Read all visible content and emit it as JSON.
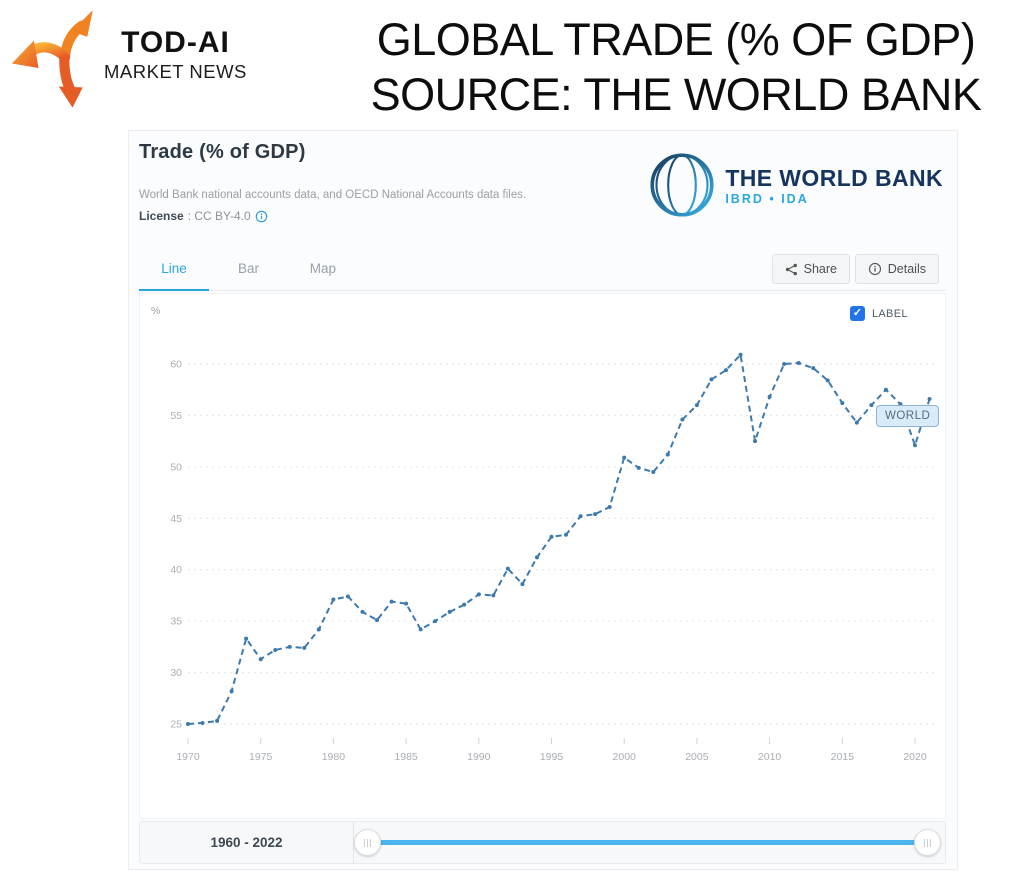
{
  "header": {
    "brand_title": "TOD-AI",
    "brand_subtitle": "MARKET NEWS",
    "title_line1": "GLOBAL TRADE (% OF GDP)",
    "title_line2": "SOURCE: THE WORLD BANK"
  },
  "panel": {
    "title": "Trade (% of GDP)",
    "subtitle": "World Bank national accounts data, and OECD National Accounts data files.",
    "license_label": "License",
    "license_value": ": CC BY-4.0",
    "world_bank_logo": {
      "name": "THE WORLD BANK",
      "sub": "IBRD • IDA"
    },
    "tabs": [
      {
        "label": "Line",
        "active": true
      },
      {
        "label": "Bar",
        "active": false
      },
      {
        "label": "Map",
        "active": false
      }
    ],
    "share_label": "Share",
    "details_label": "Details",
    "label_checkbox": {
      "checked": true,
      "text": "LABEL",
      "check_glyph": "✓"
    },
    "slider": {
      "range_label": "1960 - 2022"
    }
  },
  "chart_data": {
    "type": "line",
    "title": "Trade (% of GDP)",
    "ylabel": "%",
    "xlabel": "",
    "grid": "horizontal-dashed",
    "legend_position": "on-line-label",
    "line_color": "#3c7aad",
    "ylim": [
      23,
      64
    ],
    "xlim": [
      1967,
      2022
    ],
    "y_ticks": [
      25,
      30,
      35,
      40,
      45,
      50,
      55,
      60
    ],
    "x_ticks": [
      1970,
      1975,
      1980,
      1985,
      1990,
      1995,
      2000,
      2005,
      2010,
      2015,
      2020
    ],
    "series": [
      {
        "name": "WORLD",
        "x": [
          1970,
          1971,
          1972,
          1973,
          1974,
          1975,
          1976,
          1977,
          1978,
          1979,
          1980,
          1981,
          1982,
          1983,
          1984,
          1985,
          1986,
          1987,
          1988,
          1989,
          1990,
          1991,
          1992,
          1993,
          1994,
          1995,
          1996,
          1997,
          1998,
          1999,
          2000,
          2001,
          2002,
          2003,
          2004,
          2005,
          2006,
          2007,
          2008,
          2009,
          2010,
          2011,
          2012,
          2013,
          2014,
          2015,
          2016,
          2017,
          2018,
          2019,
          2020,
          2021
        ],
        "values": [
          25.0,
          25.1,
          25.3,
          28.2,
          33.3,
          31.3,
          32.2,
          32.5,
          32.4,
          34.2,
          37.1,
          37.4,
          35.9,
          35.1,
          36.9,
          36.7,
          34.2,
          35.0,
          35.9,
          36.6,
          37.6,
          37.5,
          40.1,
          38.6,
          41.2,
          43.2,
          43.4,
          45.2,
          45.4,
          46.1,
          50.9,
          49.9,
          49.5,
          51.2,
          54.6,
          56.0,
          58.5,
          59.4,
          60.9,
          52.5,
          56.8,
          60.0,
          60.1,
          59.6,
          58.4,
          56.2,
          54.3,
          56.0,
          57.5,
          56.1,
          52.1,
          56.6
        ]
      }
    ]
  }
}
